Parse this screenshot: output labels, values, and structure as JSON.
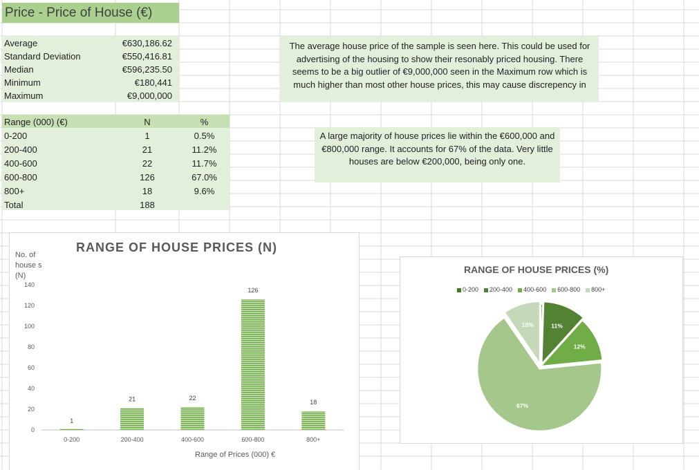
{
  "sheet_title": "Price - Price of House (€)",
  "stats": [
    {
      "label": "Average",
      "value": "€630,186.62"
    },
    {
      "label": "Standard Deviation",
      "value": "€550,416.81"
    },
    {
      "label": "Median",
      "value": "€596,235.50"
    },
    {
      "label": "Minimum",
      "value": "€180,441"
    },
    {
      "label": "Maximum",
      "value": "€9,000,000"
    }
  ],
  "freq_table": {
    "headers": [
      "Range (000) (€)",
      "N",
      "%"
    ],
    "rows": [
      [
        "0-200",
        "1",
        "0.5%"
      ],
      [
        "200-400",
        "21",
        "11.2%"
      ],
      [
        "400-600",
        "22",
        "11.7%"
      ],
      [
        "600-800",
        "126",
        "67.0%"
      ],
      [
        "800+",
        "18",
        "9.6%"
      ],
      [
        "Total",
        "188",
        ""
      ]
    ]
  },
  "notes": {
    "note1": "The average house price of the sample is seen here. This could be used for advertising of the housing to show their resonably priced housing. There seems to be a big outlier of €9,000,000 seen in the Maximum row which is much higher than most other house prices, this may cause discrepency in",
    "note2": "A large majority of house prices lie within the €600,000 and €800,000 range. It accounts for 67% of the data. Very little houses are below €200,000, being only one."
  },
  "colors": {
    "cell_fill": "#e2efda",
    "title_fill": "#a9d08e",
    "bar": "#70ad47"
  },
  "chart_data": [
    {
      "type": "bar",
      "title": "RANGE OF HOUSE PRICES (N)",
      "ylabel": "No. of house s (N)",
      "xlabel": "Range of Prices (000) €",
      "categories": [
        "0-200",
        "200-400",
        "400-600",
        "600-800",
        "800+"
      ],
      "values": [
        1,
        21,
        22,
        126,
        18
      ],
      "ylim": [
        0,
        140
      ],
      "yticks": [
        0,
        20,
        40,
        60,
        80,
        100,
        120,
        140
      ],
      "data_labels": true,
      "grid": false
    },
    {
      "type": "pie",
      "title": "RANGE OF HOUSE PRICES (%)",
      "categories": [
        "0-200",
        "200-400",
        "400-600",
        "600-800",
        "800+"
      ],
      "values": [
        0.5,
        11.2,
        11.7,
        67.0,
        9.6
      ],
      "slice_labels": [
        "0%",
        "11%",
        "12%",
        "67%",
        "10%"
      ],
      "colors": [
        "#3f7a1f",
        "#548235",
        "#70ad47",
        "#a5c78b",
        "#c5d9b8"
      ],
      "legend": "top"
    }
  ]
}
